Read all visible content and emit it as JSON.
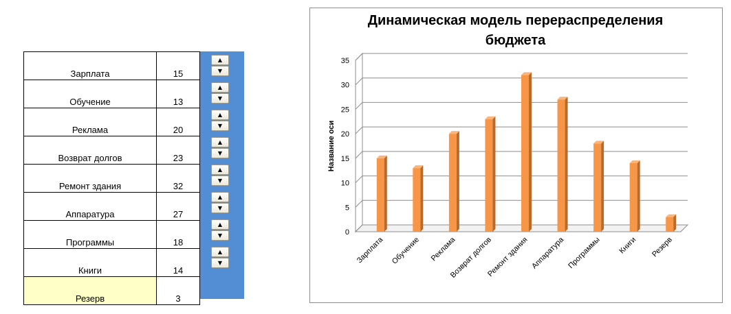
{
  "items": [
    {
      "label": "Зарплата",
      "value": 15
    },
    {
      "label": "Обучение",
      "value": 13
    },
    {
      "label": "Реклама",
      "value": 20
    },
    {
      "label": "Возврат долгов",
      "value": 23
    },
    {
      "label": "Ремонт здания",
      "value": 32
    },
    {
      "label": "Аппаратура",
      "value": 27
    },
    {
      "label": "Программы",
      "value": 18
    },
    {
      "label": "Книги",
      "value": 14
    },
    {
      "label": "Резерв",
      "value": 3
    }
  ],
  "spinner": {
    "up_icon": "arrow-up-icon",
    "down_icon": "arrow-down-icon",
    "up_glyph": "▲",
    "down_glyph": "▼"
  },
  "colors": {
    "panel": "#538ed5",
    "reserve_fill": "#ffffc8",
    "bar": "#f79646",
    "bar_side": "#b86a2a",
    "bar_top": "#fbb47a"
  },
  "chart_data": {
    "type": "bar",
    "title_line1": "Динамическая модель перераспределения",
    "title_line2": "бюджета",
    "ylabel": "Название оси",
    "xlabel": "",
    "categories": [
      "Зарплата",
      "Обучение",
      "Реклама",
      "Возврат долгов",
      "Ремонт здания",
      "Аппаратура",
      "Программы",
      "Книги",
      "Резерв"
    ],
    "values": [
      15,
      13,
      20,
      23,
      32,
      27,
      18,
      14,
      3
    ],
    "ylim": [
      0,
      35
    ],
    "yticks": [
      0,
      5,
      10,
      15,
      20,
      25,
      30,
      35
    ],
    "grid": true,
    "legend": "none"
  }
}
